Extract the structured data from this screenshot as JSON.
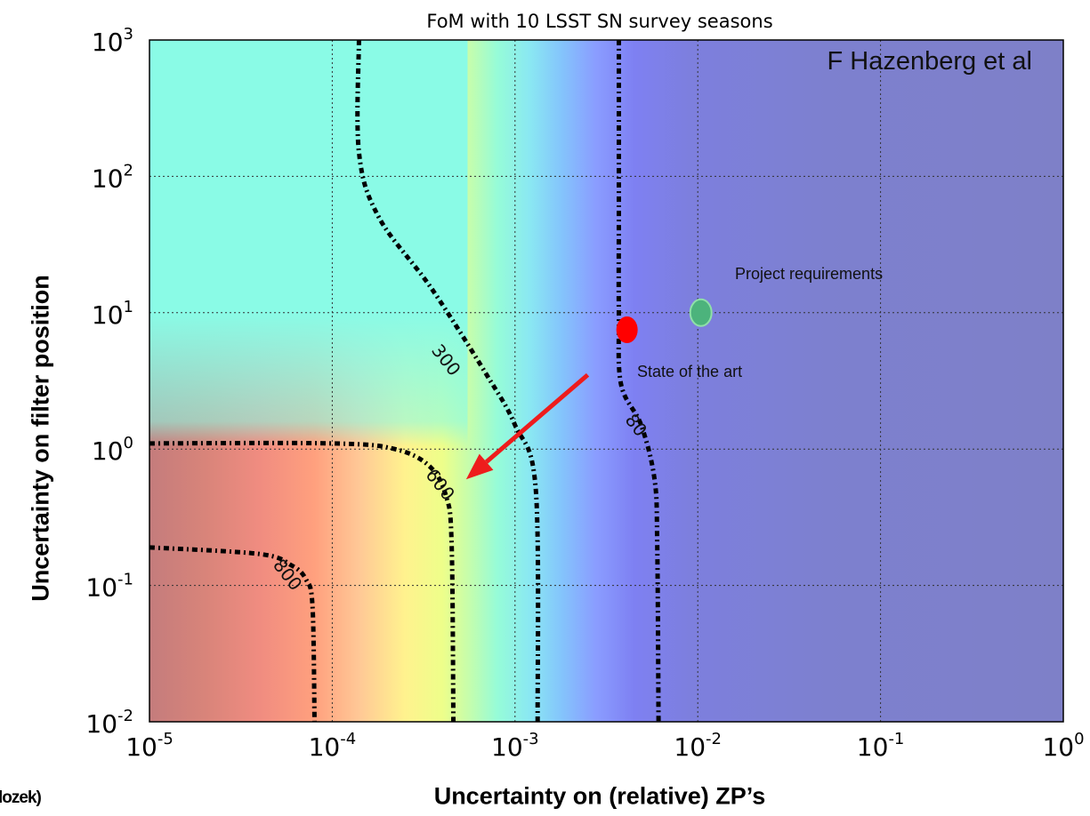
{
  "chart_data": {
    "type": "heatmap",
    "title": "FoM with 10 LSST SN survey seasons",
    "xlabel": "Uncertainty on (relative) ZP’s",
    "ylabel": "Uncertainty on filter position",
    "xscale": "log",
    "yscale": "log",
    "xlim": [
      1e-05,
      1
    ],
    "ylim": [
      0.01,
      1000
    ],
    "grid": true,
    "x_ticks": [
      {
        "base": "10",
        "exp": "-5"
      },
      {
        "base": "10",
        "exp": "-4"
      },
      {
        "base": "10",
        "exp": "-3"
      },
      {
        "base": "10",
        "exp": "-2"
      },
      {
        "base": "10",
        "exp": "-1"
      },
      {
        "base": "10",
        "exp": "0"
      }
    ],
    "y_ticks": [
      {
        "base": "10",
        "exp": "-2"
      },
      {
        "base": "10",
        "exp": "-1"
      },
      {
        "base": "10",
        "exp": "0"
      },
      {
        "base": "10",
        "exp": "1"
      },
      {
        "base": "10",
        "exp": "2"
      },
      {
        "base": "10",
        "exp": "3"
      }
    ],
    "contours": [
      {
        "level": "800",
        "points": [
          [
            1e-05,
            0.19
          ],
          [
            4e-05,
            0.17
          ],
          [
            6e-05,
            0.14
          ],
          [
            7.2e-05,
            0.11
          ],
          [
            7.8e-05,
            0.07
          ],
          [
            8e-05,
            0.01
          ]
        ],
        "label_at": [
          5.7e-05,
          0.12
        ]
      },
      {
        "level": "600",
        "points": [
          [
            1e-05,
            1.1
          ],
          [
            0.0001,
            1.1
          ],
          [
            0.00022,
            1.0
          ],
          [
            0.00034,
            0.75
          ],
          [
            0.00042,
            0.45
          ],
          [
            0.00045,
            0.2
          ],
          [
            0.00046,
            0.01
          ]
        ],
        "label_at": [
          0.00039,
          0.55
        ]
      },
      {
        "level": "300",
        "points": [
          [
            0.00014,
            1000
          ],
          [
            0.00014,
            150
          ],
          [
            0.00018,
            50
          ],
          [
            0.00035,
            15
          ],
          [
            0.0007,
            3.5
          ],
          [
            0.001,
            1.5
          ],
          [
            0.0013,
            0.5
          ],
          [
            0.00133,
            0.01
          ]
        ],
        "label_at": [
          0.00042,
          4.5
        ]
      },
      {
        "level": "80",
        "points": [
          [
            0.0037,
            1000
          ],
          [
            0.0037,
            60
          ],
          [
            0.0037,
            10
          ],
          [
            0.0038,
            3
          ],
          [
            0.0049,
            1.5
          ],
          [
            0.0058,
            0.6
          ],
          [
            0.006,
            0.2
          ],
          [
            0.0061,
            0.01
          ]
        ],
        "label_at": [
          0.0046,
          1.5
        ]
      }
    ],
    "color_bands": [
      {
        "x": 1e-05,
        "color": "#c47c7c"
      },
      {
        "x": 2e-05,
        "color": "#d8847a"
      },
      {
        "x": 4e-05,
        "color": "#f08c80"
      },
      {
        "x": 8e-05,
        "color": "#ffa07e"
      },
      {
        "x": 0.00014,
        "color": "#ffc896"
      },
      {
        "x": 0.00025,
        "color": "#fff28e"
      },
      {
        "x": 0.0004,
        "color": "#eefe8a"
      },
      {
        "x": 0.00055,
        "color": "#c8fdaa"
      },
      {
        "x": 0.0008,
        "color": "#96fcd8"
      },
      {
        "x": 0.0012,
        "color": "#8ae8f2"
      },
      {
        "x": 0.0018,
        "color": "#84c4fc"
      },
      {
        "x": 0.0028,
        "color": "#8a9cff"
      },
      {
        "x": 0.0045,
        "color": "#7e80f2"
      },
      {
        "x": 0.009,
        "color": "#7d7fde"
      },
      {
        "x": 0.05,
        "color": "#7d80cf"
      },
      {
        "x": 1,
        "color": "#7e80c8"
      }
    ],
    "top_fill_color": "#8afbe6",
    "markers": [
      {
        "name": "state-of-the-art",
        "x": 0.0041,
        "y": 7.5,
        "color": "#ff0000"
      },
      {
        "name": "project-requirements",
        "x": 0.0104,
        "y": 10,
        "color": "#4cb37c"
      }
    ],
    "arrow": {
      "from": [
        0.0025,
        3.5
      ],
      "to": [
        0.00054,
        0.6
      ],
      "color": "#ee1c1c"
    },
    "annotations": {
      "author": "F Hazenberg et al",
      "project": "Project requirements",
      "state": "State of the art"
    }
  },
  "credit": "lozek)"
}
